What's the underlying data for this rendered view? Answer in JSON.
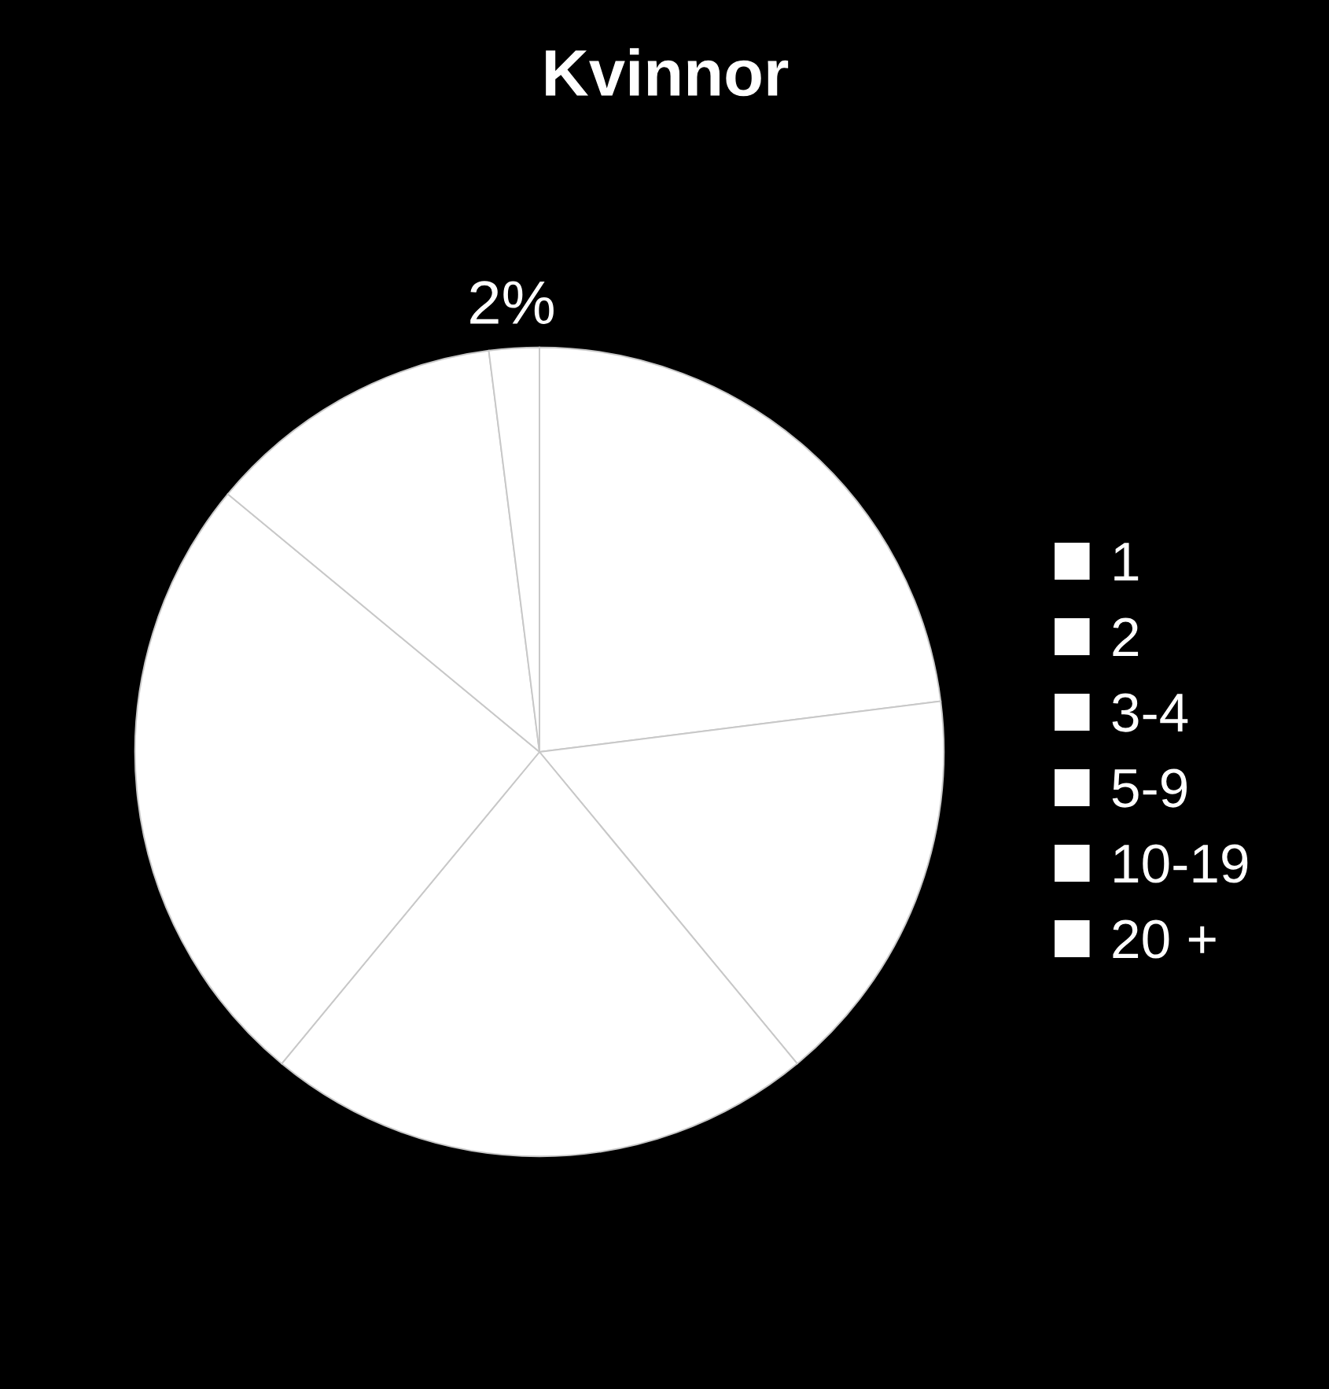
{
  "chart_data": {
    "type": "pie",
    "title": "Kvinnor",
    "categories": [
      "1",
      "2",
      "3-4",
      "5-9",
      "10-19",
      "20 +"
    ],
    "values": [
      23,
      16,
      22,
      25,
      12,
      2
    ],
    "colors": [
      "#ffffff",
      "#ffffff",
      "#ffffff",
      "#ffffff",
      "#ffffff",
      "#ffffff"
    ],
    "value_labels": [
      null,
      null,
      null,
      null,
      null,
      "2%"
    ],
    "legend": "right"
  }
}
